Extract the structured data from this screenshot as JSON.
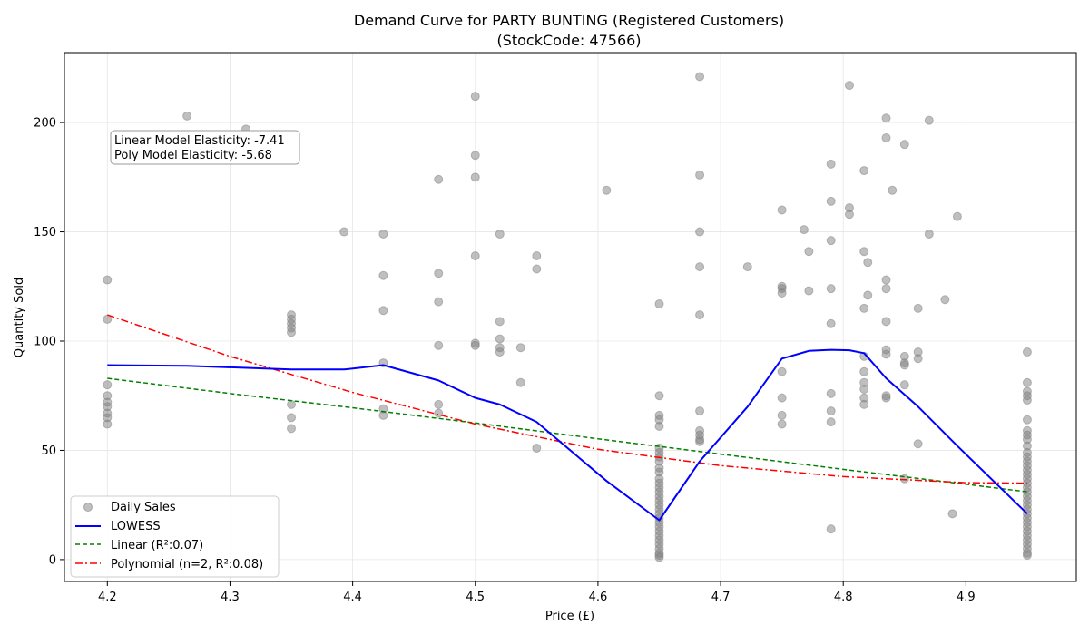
{
  "chart_data": {
    "type": "scatter",
    "title_line1": "Demand Curve for PARTY BUNTING (Registered Customers)",
    "title_line2": "(StockCode: 47566)",
    "xlabel": "Price (£)",
    "ylabel": "Quantity Sold",
    "xlim": [
      4.165,
      4.99
    ],
    "ylim": [
      -10,
      232
    ],
    "xticks": [
      "4.2",
      "4.3",
      "4.4",
      "4.5",
      "4.6",
      "4.7",
      "4.8",
      "4.9"
    ],
    "yticks": [
      "0",
      "50",
      "100",
      "150",
      "200"
    ],
    "grid": true,
    "legend_position": "bottom-left",
    "annotation": {
      "line1": "Linear Model Elasticity: -7.41",
      "line2": "Poly Model Elasticity: -5.68"
    },
    "colors": {
      "scatter": "#808080",
      "lowess": "#0000ff",
      "linear": "#008000",
      "poly": "#ff0000"
    },
    "series": [
      {
        "name": "Daily Sales",
        "kind": "scatter",
        "points": [
          [
            4.2,
            128
          ],
          [
            4.2,
            110
          ],
          [
            4.2,
            80
          ],
          [
            4.2,
            75
          ],
          [
            4.2,
            72
          ],
          [
            4.2,
            70
          ],
          [
            4.2,
            67
          ],
          [
            4.2,
            65
          ],
          [
            4.2,
            62
          ],
          [
            4.265,
            203
          ],
          [
            4.313,
            197
          ],
          [
            4.35,
            112
          ],
          [
            4.35,
            110
          ],
          [
            4.35,
            108
          ],
          [
            4.35,
            106
          ],
          [
            4.35,
            104
          ],
          [
            4.35,
            71
          ],
          [
            4.35,
            65
          ],
          [
            4.35,
            60
          ],
          [
            4.393,
            150
          ],
          [
            4.425,
            149
          ],
          [
            4.425,
            130
          ],
          [
            4.425,
            114
          ],
          [
            4.425,
            90
          ],
          [
            4.425,
            69
          ],
          [
            4.425,
            66
          ],
          [
            4.47,
            174
          ],
          [
            4.47,
            131
          ],
          [
            4.47,
            118
          ],
          [
            4.47,
            98
          ],
          [
            4.47,
            71
          ],
          [
            4.47,
            67
          ],
          [
            4.5,
            212
          ],
          [
            4.5,
            185
          ],
          [
            4.5,
            175
          ],
          [
            4.5,
            139
          ],
          [
            4.5,
            99
          ],
          [
            4.5,
            98
          ],
          [
            4.52,
            149
          ],
          [
            4.52,
            109
          ],
          [
            4.52,
            101
          ],
          [
            4.52,
            97
          ],
          [
            4.52,
            95
          ],
          [
            4.537,
            97
          ],
          [
            4.537,
            81
          ],
          [
            4.55,
            139
          ],
          [
            4.55,
            133
          ],
          [
            4.55,
            51
          ],
          [
            4.607,
            169
          ],
          [
            4.65,
            117
          ],
          [
            4.65,
            75
          ],
          [
            4.65,
            66
          ],
          [
            4.65,
            64
          ],
          [
            4.65,
            61
          ],
          [
            4.65,
            51
          ],
          [
            4.65,
            49
          ],
          [
            4.65,
            47
          ],
          [
            4.65,
            45
          ],
          [
            4.65,
            42
          ],
          [
            4.65,
            40
          ],
          [
            4.65,
            37
          ],
          [
            4.65,
            35
          ],
          [
            4.65,
            33
          ],
          [
            4.65,
            31
          ],
          [
            4.65,
            29
          ],
          [
            4.65,
            27
          ],
          [
            4.65,
            25
          ],
          [
            4.65,
            23
          ],
          [
            4.65,
            21
          ],
          [
            4.65,
            19
          ],
          [
            4.65,
            17
          ],
          [
            4.65,
            15
          ],
          [
            4.65,
            13
          ],
          [
            4.65,
            11
          ],
          [
            4.65,
            9
          ],
          [
            4.65,
            7
          ],
          [
            4.65,
            5
          ],
          [
            4.65,
            3
          ],
          [
            4.65,
            2
          ],
          [
            4.65,
            1
          ],
          [
            4.683,
            221
          ],
          [
            4.683,
            176
          ],
          [
            4.683,
            150
          ],
          [
            4.683,
            134
          ],
          [
            4.683,
            112
          ],
          [
            4.683,
            68
          ],
          [
            4.683,
            59
          ],
          [
            4.683,
            57
          ],
          [
            4.683,
            55
          ],
          [
            4.683,
            54
          ],
          [
            4.722,
            134
          ],
          [
            4.75,
            160
          ],
          [
            4.75,
            125
          ],
          [
            4.75,
            124
          ],
          [
            4.75,
            122
          ],
          [
            4.75,
            86
          ],
          [
            4.75,
            74
          ],
          [
            4.75,
            66
          ],
          [
            4.75,
            62
          ],
          [
            4.768,
            151
          ],
          [
            4.772,
            141
          ],
          [
            4.772,
            123
          ],
          [
            4.79,
            181
          ],
          [
            4.79,
            164
          ],
          [
            4.79,
            146
          ],
          [
            4.79,
            124
          ],
          [
            4.79,
            108
          ],
          [
            4.79,
            76
          ],
          [
            4.79,
            68
          ],
          [
            4.79,
            63
          ],
          [
            4.79,
            14
          ],
          [
            4.805,
            217
          ],
          [
            4.805,
            161
          ],
          [
            4.805,
            158
          ],
          [
            4.817,
            178
          ],
          [
            4.817,
            141
          ],
          [
            4.817,
            115
          ],
          [
            4.817,
            93
          ],
          [
            4.817,
            86
          ],
          [
            4.817,
            81
          ],
          [
            4.817,
            78
          ],
          [
            4.817,
            74
          ],
          [
            4.817,
            71
          ],
          [
            4.82,
            136
          ],
          [
            4.82,
            121
          ],
          [
            4.835,
            202
          ],
          [
            4.835,
            193
          ],
          [
            4.835,
            128
          ],
          [
            4.835,
            124
          ],
          [
            4.835,
            109
          ],
          [
            4.835,
            96
          ],
          [
            4.835,
            94
          ],
          [
            4.835,
            75
          ],
          [
            4.835,
            74
          ],
          [
            4.84,
            169
          ],
          [
            4.85,
            190
          ],
          [
            4.85,
            93
          ],
          [
            4.85,
            90
          ],
          [
            4.85,
            89
          ],
          [
            4.85,
            80
          ],
          [
            4.85,
            37
          ],
          [
            4.861,
            115
          ],
          [
            4.861,
            95
          ],
          [
            4.861,
            92
          ],
          [
            4.861,
            53
          ],
          [
            4.87,
            201
          ],
          [
            4.87,
            149
          ],
          [
            4.883,
            119
          ],
          [
            4.889,
            21
          ],
          [
            4.893,
            157
          ],
          [
            4.95,
            95
          ],
          [
            4.95,
            81
          ],
          [
            4.95,
            77
          ],
          [
            4.95,
            75
          ],
          [
            4.95,
            73
          ],
          [
            4.95,
            64
          ],
          [
            4.95,
            59
          ],
          [
            4.95,
            57
          ],
          [
            4.95,
            55
          ],
          [
            4.95,
            52
          ],
          [
            4.95,
            49
          ],
          [
            4.95,
            47
          ],
          [
            4.95,
            45
          ],
          [
            4.95,
            43
          ],
          [
            4.95,
            41
          ],
          [
            4.95,
            39
          ],
          [
            4.95,
            37
          ],
          [
            4.95,
            35
          ],
          [
            4.95,
            33
          ],
          [
            4.95,
            31
          ],
          [
            4.95,
            29
          ],
          [
            4.95,
            27
          ],
          [
            4.95,
            25
          ],
          [
            4.95,
            23
          ],
          [
            4.95,
            21
          ],
          [
            4.95,
            19
          ],
          [
            4.95,
            17
          ],
          [
            4.95,
            15
          ],
          [
            4.95,
            13
          ],
          [
            4.95,
            11
          ],
          [
            4.95,
            9
          ],
          [
            4.95,
            7
          ],
          [
            4.95,
            5
          ],
          [
            4.95,
            3
          ],
          [
            4.95,
            2
          ]
        ]
      },
      {
        "name": "LOWESS",
        "kind": "line",
        "points": [
          [
            4.2,
            89
          ],
          [
            4.265,
            88.7
          ],
          [
            4.35,
            87
          ],
          [
            4.393,
            87
          ],
          [
            4.425,
            89
          ],
          [
            4.47,
            82
          ],
          [
            4.5,
            74
          ],
          [
            4.52,
            71
          ],
          [
            4.55,
            63
          ],
          [
            4.607,
            36
          ],
          [
            4.65,
            18
          ],
          [
            4.683,
            45
          ],
          [
            4.722,
            70
          ],
          [
            4.75,
            92
          ],
          [
            4.772,
            95.5
          ],
          [
            4.79,
            96
          ],
          [
            4.805,
            95.8
          ],
          [
            4.817,
            94.5
          ],
          [
            4.835,
            83
          ],
          [
            4.861,
            70
          ],
          [
            4.893,
            52
          ],
          [
            4.95,
            21
          ]
        ]
      },
      {
        "name": "Linear (R²:0.07)",
        "kind": "dashed",
        "points": [
          [
            4.2,
            83
          ],
          [
            4.3,
            76
          ],
          [
            4.4,
            69.5
          ],
          [
            4.5,
            62.5
          ],
          [
            4.6,
            55.3
          ],
          [
            4.7,
            48.3
          ],
          [
            4.8,
            41.3
          ],
          [
            4.9,
            34.5
          ],
          [
            4.95,
            31
          ]
        ]
      },
      {
        "name": "Polynomial (n=2, R²:0.08)",
        "kind": "dashdot",
        "points": [
          [
            4.2,
            112
          ],
          [
            4.3,
            93
          ],
          [
            4.4,
            76.5
          ],
          [
            4.5,
            62
          ],
          [
            4.6,
            50.5
          ],
          [
            4.7,
            43
          ],
          [
            4.8,
            38
          ],
          [
            4.9,
            35.2
          ],
          [
            4.95,
            35
          ]
        ]
      }
    ]
  }
}
